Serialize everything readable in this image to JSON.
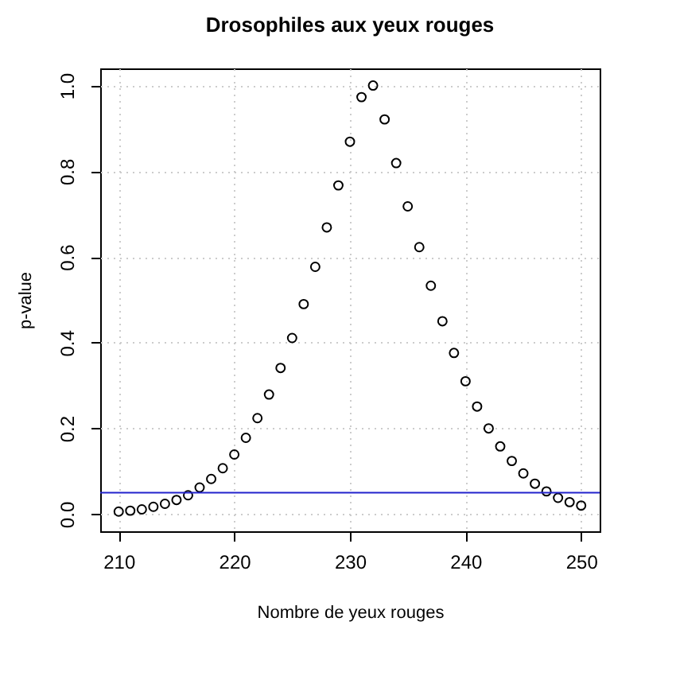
{
  "chart_data": {
    "type": "scatter",
    "title": "Drosophiles aux yeux rouges",
    "xlabel": "Nombre de yeux rouges",
    "ylabel": "p-value",
    "x": [
      210,
      211,
      212,
      213,
      214,
      215,
      216,
      217,
      218,
      219,
      220,
      221,
      222,
      223,
      224,
      225,
      226,
      227,
      228,
      229,
      230,
      231,
      232,
      233,
      234,
      235,
      236,
      237,
      238,
      239,
      240,
      241,
      242,
      243,
      244,
      245,
      246,
      247,
      248,
      249,
      250
    ],
    "series": [
      {
        "color": "#000000",
        "values": [
          0.006,
          0.008,
          0.011,
          0.017,
          0.024,
          0.033,
          0.044,
          0.062,
          0.082,
          0.107,
          0.139,
          0.178,
          0.224,
          0.279,
          0.341,
          0.411,
          0.49,
          0.577,
          0.669,
          0.767,
          0.869,
          0.973,
          1.0,
          0.921,
          0.819,
          0.718,
          0.623,
          0.533,
          0.45,
          0.376,
          0.31,
          0.251,
          0.2,
          0.158,
          0.124,
          0.095,
          0.071,
          0.053,
          0.038,
          0.028,
          0.02
        ]
      }
    ],
    "xlim": [
      208.4,
      251.6
    ],
    "ylim": [
      -0.04,
      1.04
    ],
    "xticks": [
      210,
      220,
      230,
      240,
      250
    ],
    "yticks": [
      {
        "value": 0,
        "label": "0.0"
      },
      0.2,
      0.4,
      0.6,
      0.8,
      {
        "value": 1,
        "label": "1.0"
      }
    ],
    "grid": true,
    "marker": "circle",
    "ref_lines": [
      {
        "axis": "y",
        "value": 0.05,
        "color": "#2222cc"
      }
    ]
  }
}
